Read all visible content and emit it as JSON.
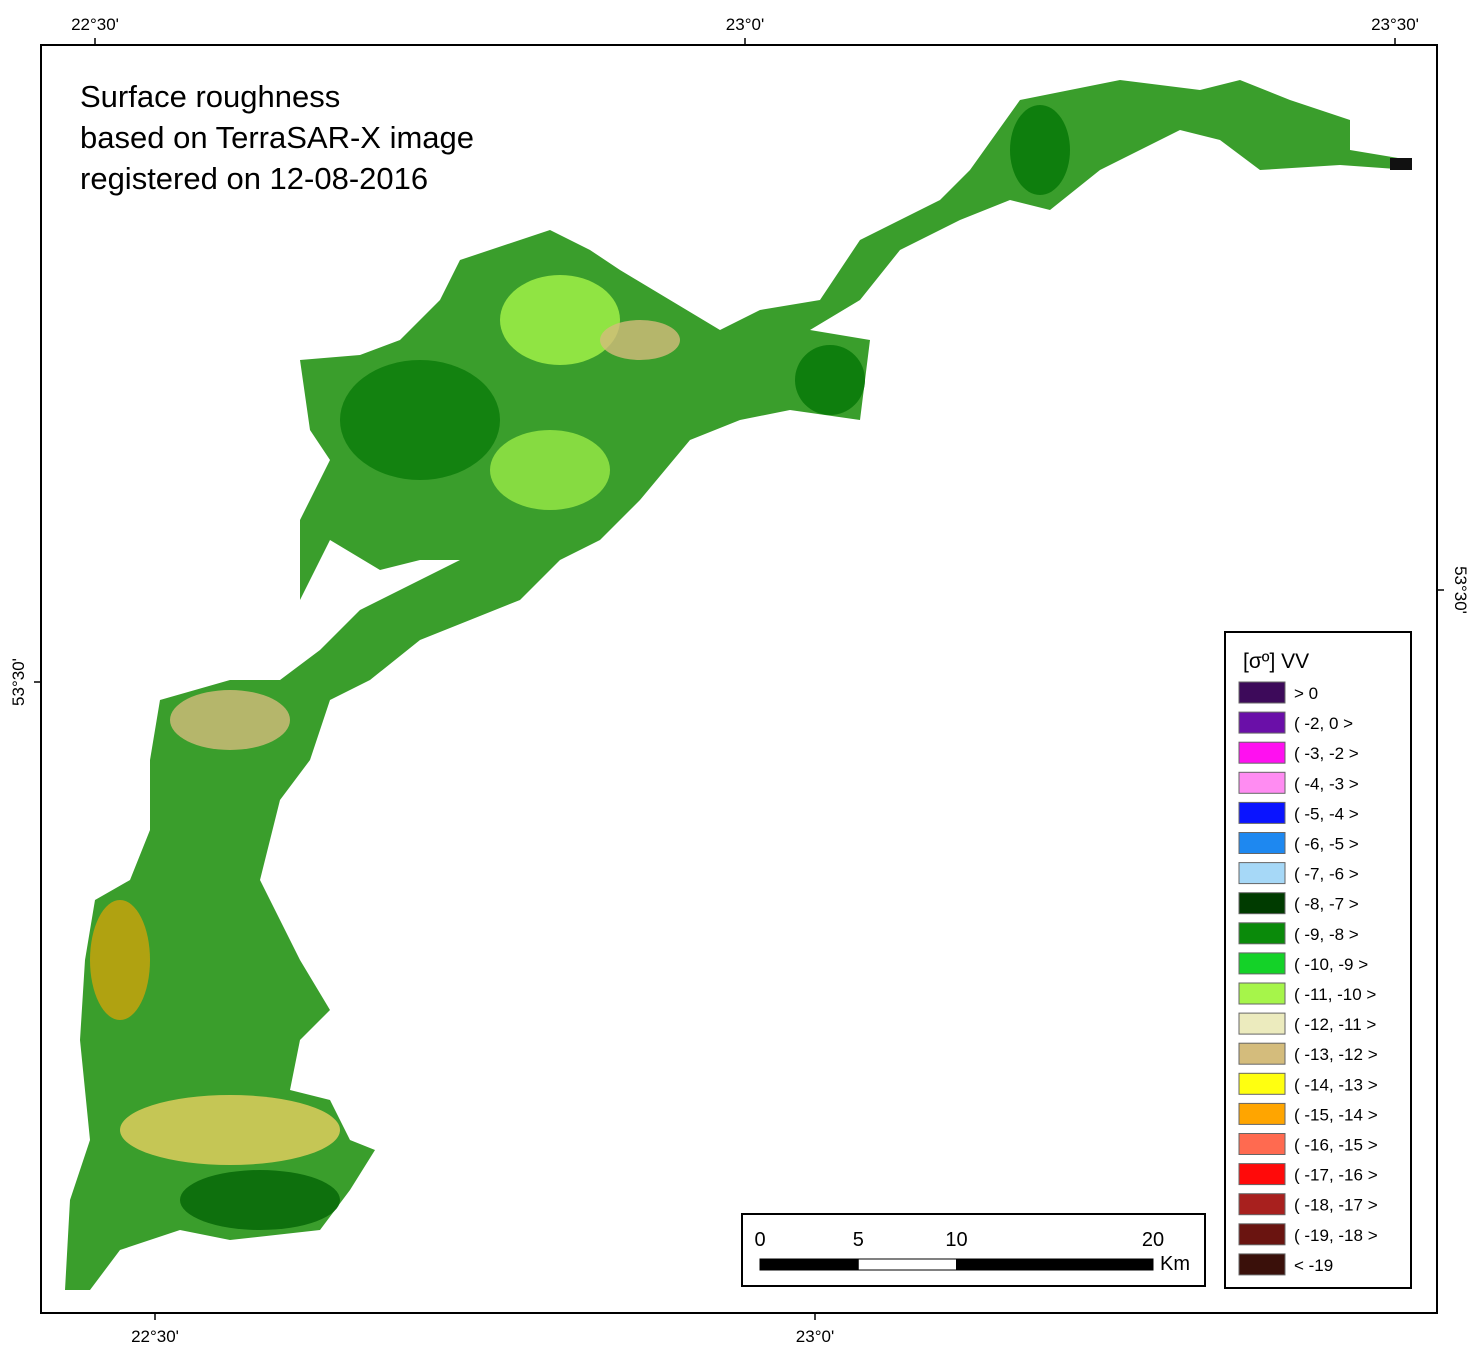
{
  "title": [
    "Surface roughness",
    "based on TerraSAR-X image",
    "registered on 12-08-2016"
  ],
  "graticule": {
    "top": [
      "22°30'",
      "23°0'",
      "23°30'"
    ],
    "bottom": [
      "22°30'",
      "23°0'"
    ],
    "left": [
      "53°30'"
    ],
    "right": [
      "53°30'"
    ]
  },
  "legend": {
    "title": "[σº] VV",
    "items": [
      {
        "label": "> 0",
        "color": "#3d0a5a"
      },
      {
        "label": "( -2, 0 >",
        "color": "#6a0fa8"
      },
      {
        "label": "( -3, -2 >",
        "color": "#ff10f0"
      },
      {
        "label": "( -4, -3 >",
        "color": "#ff8cf2"
      },
      {
        "label": "( -5, -4 >",
        "color": "#0a14ff"
      },
      {
        "label": "( -6, -5 >",
        "color": "#1e88f0"
      },
      {
        "label": "( -7, -6 >",
        "color": "#a6d8f7"
      },
      {
        "label": "( -8, -7 >",
        "color": "#003b00"
      },
      {
        "label": "( -9, -8 >",
        "color": "#0a8a0a"
      },
      {
        "label": "( -10, -9 >",
        "color": "#14d228"
      },
      {
        "label": "( -11, -10 >",
        "color": "#a6f54a"
      },
      {
        "label": "( -12, -11 >",
        "color": "#ecebbe"
      },
      {
        "label": "( -13, -12 >",
        "color": "#d4bc7c"
      },
      {
        "label": "( -14, -13 >",
        "color": "#ffff10"
      },
      {
        "label": "( -15, -14 >",
        "color": "#ffa500"
      },
      {
        "label": "( -16, -15 >",
        "color": "#ff6a50"
      },
      {
        "label": "( -17, -16 >",
        "color": "#ff0a0a"
      },
      {
        "label": "( -18, -17 >",
        "color": "#a8201e"
      },
      {
        "label": "( -19, -18 >",
        "color": "#6a1410"
      },
      {
        "label": "< -19",
        "color": "#3a100a"
      }
    ]
  },
  "scale_bar": {
    "ticks": [
      0,
      5,
      10,
      20
    ],
    "unit": "Km"
  }
}
